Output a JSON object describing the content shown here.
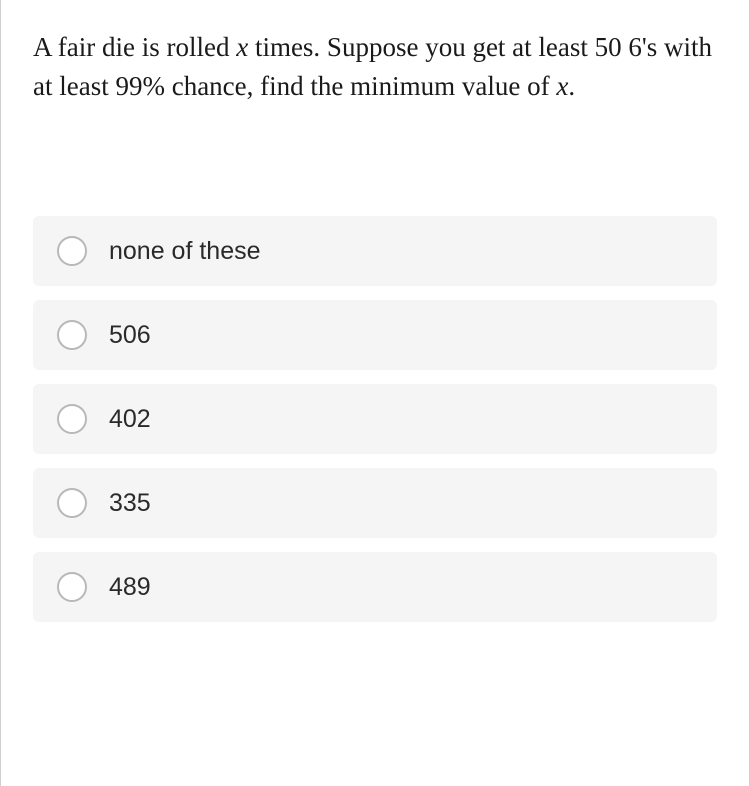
{
  "question": {
    "text_parts": [
      {
        "text": "A fair die is rolled ",
        "italic": false
      },
      {
        "text": "x",
        "italic": true
      },
      {
        "text": " times. Suppose you get at least 50 6's with at least 99% chance, find the minimum value of ",
        "italic": false
      },
      {
        "text": "x",
        "italic": true
      },
      {
        "text": ".",
        "italic": false
      }
    ],
    "full_text": "A fair die is rolled x times. Suppose you get at least 50 6's with at least 99% chance, find the minimum value of x."
  },
  "options": [
    {
      "label": "none of these",
      "selected": false
    },
    {
      "label": "506",
      "selected": false
    },
    {
      "label": "402",
      "selected": false
    },
    {
      "label": "335",
      "selected": false
    },
    {
      "label": "489",
      "selected": false
    }
  ],
  "styling": {
    "background_color": "#ffffff",
    "option_background": "#f5f5f5",
    "border_color": "#d0d0d0",
    "radio_border_color": "#b8b8b8",
    "question_font_size": 27,
    "option_font_size": 25,
    "question_color": "#1a1a1a",
    "option_text_color": "#2a2a2a"
  }
}
